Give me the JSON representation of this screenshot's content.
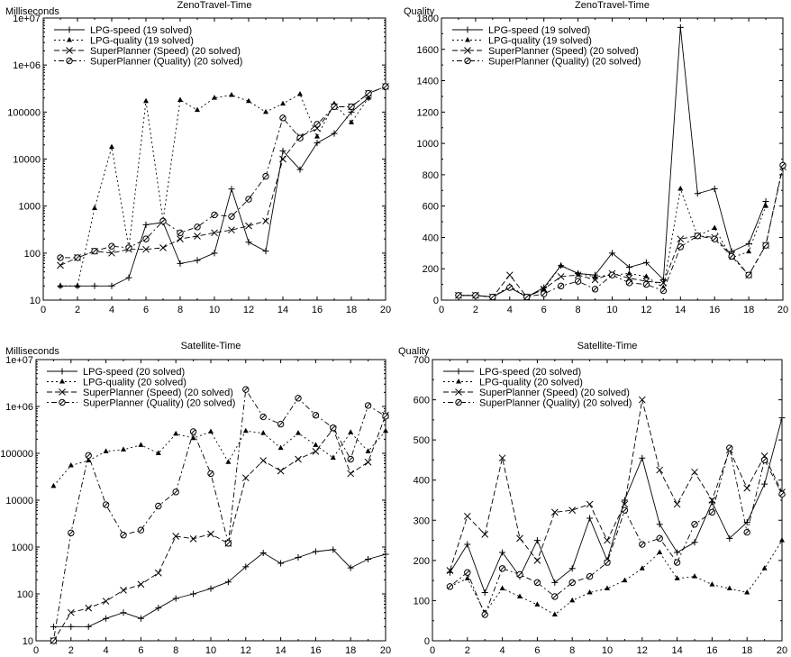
{
  "chart_data": [
    {
      "type": "line",
      "title": "ZenoTravel-Time",
      "ylabel": "Milliseconds",
      "xlabel": "",
      "yscale": "log",
      "ylim": [
        10,
        10000000
      ],
      "xlim": [
        0,
        20
      ],
      "xticks": [
        "0",
        "2",
        "4",
        "6",
        "8",
        "10",
        "12",
        "14",
        "16",
        "18",
        "20"
      ],
      "yticks": [
        "10",
        "100",
        "1000",
        "10000",
        "100000",
        "1e+06",
        "1e+07"
      ],
      "ytick_values": [
        10,
        100,
        1000,
        10000,
        100000,
        1000000,
        10000000
      ],
      "legend_position": "top-left",
      "series": [
        {
          "name": "LPG-speed (19  solved)",
          "x": [
            1,
            2,
            3,
            4,
            5,
            6,
            7,
            8,
            9,
            10,
            11,
            12,
            13,
            14,
            15,
            16,
            17,
            18,
            19
          ],
          "values": [
            20,
            20,
            20,
            20,
            30,
            400,
            450,
            60,
            70,
            100,
            2300,
            170,
            110,
            15000,
            6000,
            22000,
            35000,
            100000,
            200000
          ]
        },
        {
          "name": "LPG-quality (19  solved)",
          "x": [
            1,
            2,
            3,
            4,
            5,
            6,
            7,
            8,
            9,
            10,
            11,
            12,
            13,
            14,
            15,
            16,
            17,
            18,
            19
          ],
          "values": [
            20,
            20,
            900,
            18000,
            130,
            170000,
            500,
            180000,
            110000,
            200000,
            230000,
            170000,
            100000,
            150000,
            240000,
            30000,
            150000,
            60000,
            200000
          ]
        },
        {
          "name": "SuperPlanner (Speed) (20  solved)",
          "x": [
            1,
            2,
            3,
            4,
            5,
            6,
            7,
            8,
            9,
            10,
            11,
            12,
            13,
            14,
            15,
            16,
            17,
            18,
            19,
            20
          ],
          "values": [
            55,
            80,
            110,
            100,
            120,
            120,
            130,
            200,
            230,
            270,
            310,
            380,
            480,
            10000,
            30000,
            45000,
            130000,
            130000,
            250000,
            350000
          ]
        },
        {
          "name": "SuperPlanner (Quality) (20  solved)",
          "x": [
            1,
            2,
            3,
            4,
            5,
            6,
            7,
            8,
            9,
            10,
            11,
            12,
            13,
            14,
            15,
            16,
            17,
            18,
            19,
            20
          ],
          "values": [
            80,
            80,
            110,
            140,
            130,
            200,
            480,
            270,
            360,
            650,
            600,
            1400,
            4300,
            75000,
            28000,
            55000,
            130000,
            130000,
            250000,
            350000
          ]
        }
      ]
    },
    {
      "type": "line",
      "title": "ZenoTravel-Time",
      "ylabel": "Quality",
      "xlabel": "",
      "yscale": "linear",
      "ylim": [
        0,
        1800
      ],
      "xlim": [
        0,
        20
      ],
      "xticks": [
        "0",
        "2",
        "4",
        "6",
        "8",
        "10",
        "12",
        "14",
        "16",
        "18",
        "20"
      ],
      "yticks": [
        "0",
        "200",
        "400",
        "600",
        "800",
        "1000",
        "1200",
        "1400",
        "1600",
        "1800"
      ],
      "ytick_values": [
        0,
        200,
        400,
        600,
        800,
        1000,
        1200,
        1400,
        1600,
        1800
      ],
      "legend_position": "top-left",
      "series": [
        {
          "name": "LPG-speed (19  solved)",
          "x": [
            1,
            2,
            3,
            4,
            5,
            6,
            7,
            8,
            9,
            10,
            11,
            12,
            13,
            14,
            15,
            16,
            17,
            18,
            19
          ],
          "values": [
            30,
            30,
            20,
            80,
            20,
            80,
            220,
            170,
            160,
            300,
            210,
            240,
            130,
            1740,
            680,
            710,
            310,
            360,
            630
          ]
        },
        {
          "name": "LPG-quality (19  solved)",
          "x": [
            1,
            2,
            3,
            4,
            5,
            6,
            7,
            8,
            9,
            10,
            11,
            12,
            13,
            14,
            15,
            16,
            17,
            18,
            19
          ],
          "values": [
            30,
            30,
            20,
            90,
            20,
            70,
            220,
            170,
            150,
            160,
            170,
            150,
            80,
            710,
            410,
            460,
            270,
            310,
            600
          ]
        },
        {
          "name": "SuperPlanner (Speed) (20  solved)",
          "x": [
            1,
            2,
            3,
            4,
            5,
            6,
            7,
            8,
            9,
            10,
            11,
            12,
            13,
            14,
            15,
            16,
            17,
            18,
            19,
            20
          ],
          "values": [
            30,
            30,
            20,
            160,
            20,
            70,
            150,
            160,
            130,
            170,
            140,
            120,
            110,
            390,
            410,
            400,
            290,
            160,
            350,
            850
          ]
        },
        {
          "name": "SuperPlanner (Quality) (20  solved)",
          "x": [
            1,
            2,
            3,
            4,
            5,
            6,
            7,
            8,
            9,
            10,
            11,
            12,
            13,
            14,
            15,
            16,
            17,
            18,
            19,
            20
          ],
          "values": [
            30,
            30,
            20,
            80,
            20,
            40,
            90,
            120,
            70,
            160,
            110,
            100,
            60,
            340,
            410,
            390,
            280,
            160,
            350,
            860
          ]
        }
      ]
    },
    {
      "type": "line",
      "title": "Satellite-Time",
      "ylabel": "Milliseconds",
      "xlabel": "",
      "yscale": "log",
      "ylim": [
        10,
        10000000
      ],
      "xlim": [
        0,
        20
      ],
      "xticks": [
        "0",
        "2",
        "4",
        "6",
        "8",
        "10",
        "12",
        "14",
        "16",
        "18",
        "20"
      ],
      "yticks": [
        "10",
        "100",
        "1000",
        "10000",
        "100000",
        "1e+06",
        "1e+07"
      ],
      "ytick_values": [
        10,
        100,
        1000,
        10000,
        100000,
        1000000,
        10000000
      ],
      "legend_position": "top-left",
      "series": [
        {
          "name": "LPG-speed (20  solved)",
          "x": [
            1,
            2,
            3,
            4,
            5,
            6,
            7,
            8,
            9,
            10,
            11,
            12,
            13,
            14,
            15,
            16,
            17,
            18,
            19,
            20
          ],
          "values": [
            20,
            20,
            20,
            30,
            40,
            30,
            50,
            80,
            100,
            130,
            180,
            380,
            750,
            450,
            600,
            800,
            880,
            360,
            550,
            700
          ]
        },
        {
          "name": "LPG-quality (20  solved)",
          "x": [
            1,
            2,
            3,
            4,
            5,
            6,
            7,
            8,
            9,
            10,
            11,
            12,
            13,
            14,
            15,
            16,
            17,
            18,
            19,
            20
          ],
          "values": [
            20000,
            55000,
            70000,
            110000,
            120000,
            150000,
            100000,
            260000,
            210000,
            290000,
            65000,
            300000,
            270000,
            130000,
            270000,
            150000,
            80000,
            280000,
            110000,
            300000
          ]
        },
        {
          "name": "SuperPlanner (Speed) (20  solved)",
          "x": [
            1,
            2,
            3,
            4,
            5,
            6,
            7,
            8,
            9,
            10,
            11,
            12,
            13,
            14,
            15,
            16,
            17,
            18,
            19,
            20
          ],
          "values": [
            10,
            40,
            50,
            70,
            120,
            160,
            280,
            1700,
            1500,
            1900,
            1200,
            30000,
            70000,
            42000,
            75000,
            110000,
            330000,
            37000,
            65000,
            650000
          ]
        },
        {
          "name": "SuperPlanner (Quality) (20  solved)",
          "x": [
            1,
            2,
            3,
            4,
            5,
            6,
            7,
            8,
            9,
            10,
            11,
            12,
            13,
            14,
            15,
            16,
            17,
            18,
            19,
            20
          ],
          "values": [
            10,
            2000,
            90000,
            8000,
            1800,
            2300,
            7500,
            15000,
            290000,
            37000,
            1200,
            2300000,
            600000,
            420000,
            1500000,
            650000,
            350000,
            75000,
            1050000,
            620000
          ]
        }
      ]
    },
    {
      "type": "line",
      "title": "Satellite-Time",
      "ylabel": "Quality",
      "xlabel": "",
      "yscale": "linear",
      "ylim": [
        0,
        700
      ],
      "xlim": [
        0,
        20
      ],
      "xticks": [
        "0",
        "2",
        "4",
        "6",
        "8",
        "10",
        "12",
        "14",
        "16",
        "18",
        "20"
      ],
      "yticks": [
        "0",
        "100",
        "200",
        "300",
        "400",
        "500",
        "600",
        "700"
      ],
      "ytick_values": [
        0,
        100,
        200,
        300,
        400,
        500,
        600,
        700
      ],
      "legend_position": "top-left",
      "series": [
        {
          "name": "LPG-speed (20  solved)",
          "x": [
            1,
            2,
            3,
            4,
            5,
            6,
            7,
            8,
            9,
            10,
            11,
            12,
            13,
            14,
            15,
            16,
            17,
            18,
            19,
            20
          ],
          "values": [
            170,
            240,
            120,
            220,
            160,
            250,
            145,
            180,
            305,
            200,
            350,
            455,
            290,
            220,
            245,
            345,
            255,
            295,
            390,
            555
          ]
        },
        {
          "name": "LPG-quality (20  solved)",
          "x": [
            1,
            2,
            3,
            4,
            5,
            6,
            7,
            8,
            9,
            10,
            11,
            12,
            13,
            14,
            15,
            16,
            17,
            18,
            19,
            20
          ],
          "values": [
            135,
            155,
            70,
            130,
            110,
            90,
            65,
            100,
            120,
            130,
            150,
            180,
            220,
            155,
            160,
            140,
            130,
            120,
            180,
            250
          ]
        },
        {
          "name": "SuperPlanner (Speed) (20  solved)",
          "x": [
            1,
            2,
            3,
            4,
            5,
            6,
            7,
            8,
            9,
            10,
            11,
            12,
            13,
            14,
            15,
            16,
            17,
            18,
            19,
            20
          ],
          "values": [
            175,
            310,
            265,
            455,
            255,
            200,
            320,
            325,
            340,
            250,
            340,
            600,
            425,
            340,
            420,
            350,
            475,
            380,
            460,
            370
          ]
        },
        {
          "name": "SuperPlanner (Quality) (20  solved)",
          "x": [
            1,
            2,
            3,
            4,
            5,
            6,
            7,
            8,
            9,
            10,
            11,
            12,
            13,
            14,
            15,
            16,
            17,
            18,
            19,
            20
          ],
          "values": [
            135,
            170,
            65,
            180,
            165,
            145,
            110,
            145,
            160,
            195,
            325,
            240,
            255,
            195,
            290,
            320,
            480,
            270,
            450,
            365
          ]
        }
      ]
    }
  ]
}
